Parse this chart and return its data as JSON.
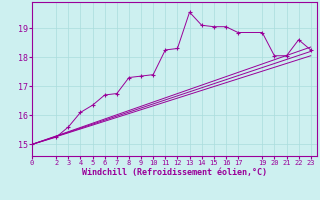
{
  "title": "",
  "xlabel": "Windchill (Refroidissement éolien,°C)",
  "bg_color": "#cdf0f0",
  "line_color": "#990099",
  "grid_color": "#aadddd",
  "x_ticks": [
    0,
    2,
    3,
    4,
    5,
    6,
    7,
    8,
    9,
    10,
    11,
    12,
    13,
    14,
    15,
    16,
    17,
    19,
    20,
    21,
    22,
    23
  ],
  "ylim": [
    14.6,
    19.9
  ],
  "xlim": [
    0,
    23.5
  ],
  "yticks": [
    15,
    16,
    17,
    18,
    19
  ],
  "curve1_x": [
    0,
    2,
    3,
    4,
    5,
    6,
    7,
    8,
    9,
    10,
    11,
    12,
    13,
    14,
    15,
    16,
    17,
    19,
    20,
    21,
    22,
    23
  ],
  "curve1_y": [
    15.0,
    15.25,
    15.6,
    16.1,
    16.35,
    16.7,
    16.75,
    17.3,
    17.35,
    17.4,
    18.25,
    18.3,
    19.55,
    19.1,
    19.05,
    19.05,
    18.85,
    18.85,
    18.05,
    18.05,
    18.6,
    18.25
  ],
  "line2_x": [
    0,
    23
  ],
  "line2_y": [
    15.0,
    18.35
  ],
  "line3_x": [
    0,
    23
  ],
  "line3_y": [
    15.0,
    18.2
  ],
  "line4_x": [
    0,
    23
  ],
  "line4_y": [
    15.0,
    18.05
  ]
}
